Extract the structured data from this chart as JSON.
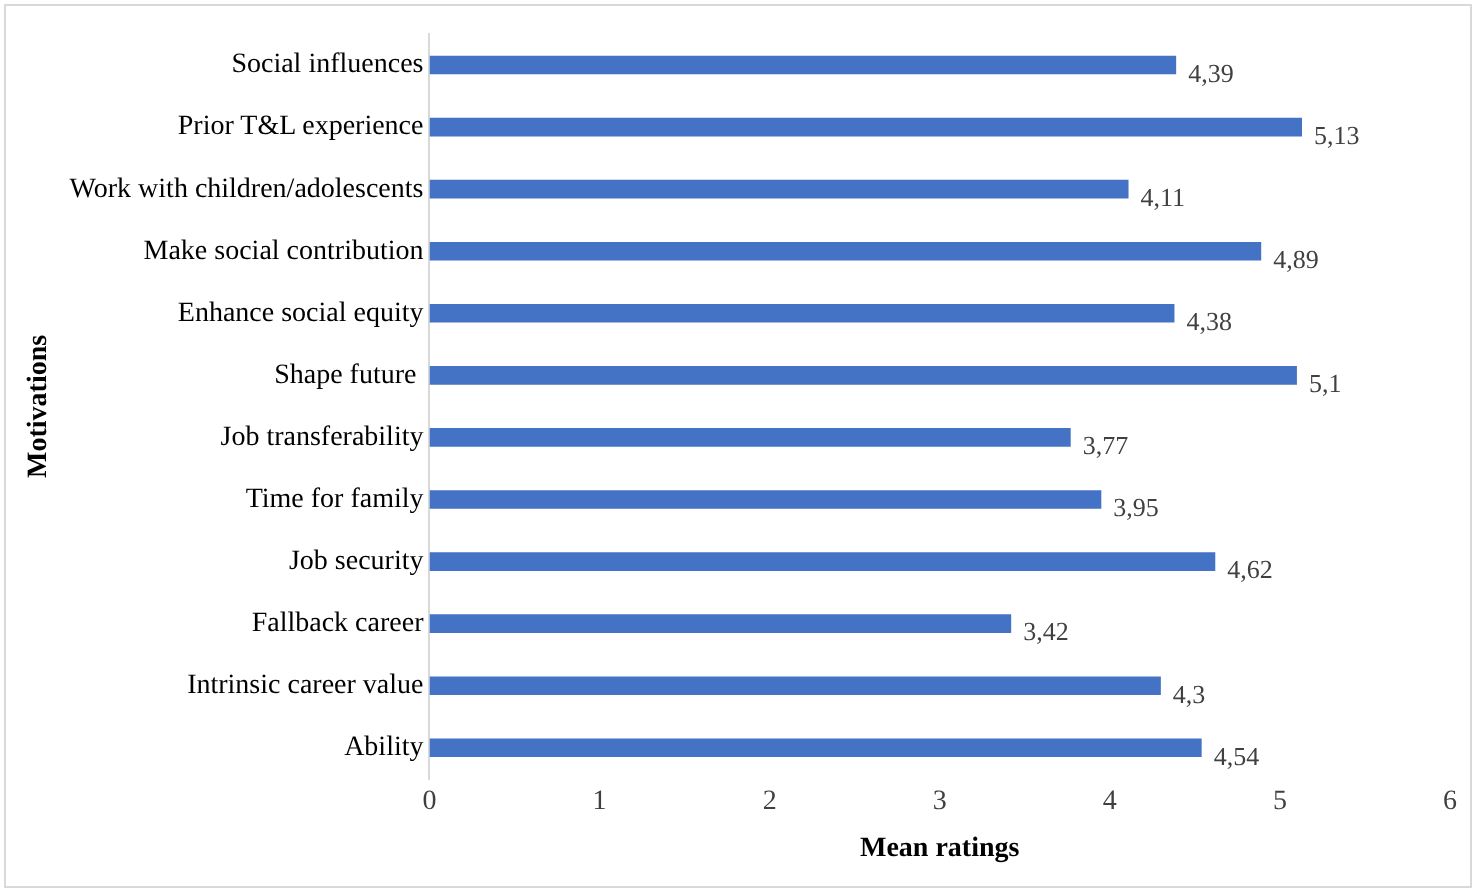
{
  "chart_data": {
    "type": "bar",
    "orientation": "horizontal",
    "xlabel": "Mean ratings",
    "ylabel": "Motivations",
    "categories": [
      "Social influences",
      "Prior T&L experience",
      "Work with children/adolescents",
      "Make social contribution",
      "Enhance social equity",
      "Shape future ",
      "Job transferability",
      "Time for family",
      "Job security",
      "Fallback career",
      "Intrinsic career value",
      "Ability"
    ],
    "values": [
      4.39,
      5.13,
      4.11,
      4.89,
      4.38,
      5.1,
      3.77,
      3.95,
      4.62,
      3.42,
      4.3,
      4.54
    ],
    "value_labels": [
      "4,39",
      "5,13",
      "4,11",
      "4,89",
      "4,38",
      "5,1",
      "3,77",
      "3,95",
      "4,62",
      "3,42",
      "4,3",
      "4,54"
    ],
    "color": "#4472c4",
    "xlim": [
      0,
      6
    ],
    "xticks": [
      0,
      1,
      2,
      3,
      4,
      5,
      6
    ],
    "grid": false,
    "legend": false
  }
}
